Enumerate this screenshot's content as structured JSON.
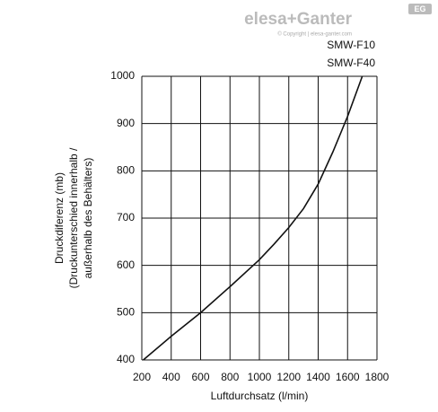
{
  "brand": {
    "logo": "elesa+Ganter",
    "copyright": "© Copyright | elesa-ganter.com",
    "badge": "EG"
  },
  "chart_data": {
    "type": "line",
    "y_label_lines": [
      "Druckdiferenz (mb)",
      "(Druckunterschied innerhalb /",
      "außerhalb des Behälters)"
    ],
    "x_label": "Luftdurchsatz (l/min)",
    "curve_labels": [
      "SMW-F10",
      "SMW-F40"
    ],
    "x": [
      210,
      400,
      600,
      800,
      1000,
      1100,
      1200,
      1300,
      1400,
      1500,
      1600,
      1700
    ],
    "series": [
      {
        "color": "#111111",
        "values": [
          400,
          450,
          500,
          555,
          612,
          645,
          680,
          720,
          772,
          840,
          915,
          1000
        ]
      }
    ],
    "xlim": [
      200,
      1800
    ],
    "xticks": [
      200,
      400,
      600,
      800,
      1000,
      1200,
      1400,
      1600,
      1800
    ],
    "ylim": [
      400,
      1000
    ],
    "yticks": [
      400,
      500,
      600,
      700,
      800,
      900,
      1000
    ],
    "grid": true
  }
}
